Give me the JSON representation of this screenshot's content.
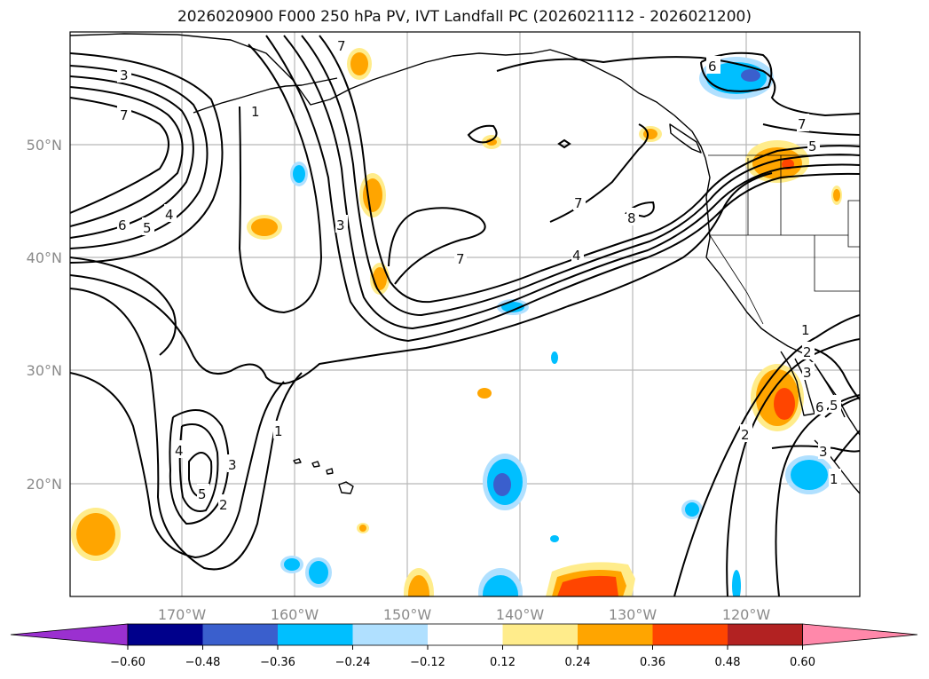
{
  "title": "2026020900 F000 250 hPa PV, IVT Landfall PC (2026021112 - 2026021200)",
  "map": {
    "lon_labels": [
      "170°W",
      "160°W",
      "150°W",
      "140°W",
      "130°W",
      "120°W"
    ],
    "lat_labels": [
      "50°N",
      "40°N",
      "30°N",
      "20°N"
    ],
    "contour_labels": [
      "3",
      "7",
      "1",
      "6",
      "6",
      "5",
      "4",
      "3",
      "7",
      "8",
      "7",
      "4",
      "5",
      "7",
      "1",
      "2",
      "3",
      "4",
      "5",
      "1",
      "2",
      "3",
      "1",
      "6",
      "5",
      "2",
      "3",
      "7"
    ],
    "fill_palette": {
      "neg_060": "#9b30d0",
      "neg_048": "#00008b",
      "neg_036": "#3a5fcd",
      "neg_024": "#00bfff",
      "neg_012": "#b0e0ff",
      "pos_012": "#ffec8b",
      "pos_024": "#ffa500",
      "pos_036": "#ff4500",
      "pos_048": "#b22222",
      "pos_060": "#ff88aa"
    }
  },
  "colorbar": {
    "colors": [
      "#9b30d0",
      "#00008b",
      "#3a5fcd",
      "#00bfff",
      "#b0e0ff",
      "#ffffff",
      "#ffec8b",
      "#ffa500",
      "#ff4500",
      "#b22222",
      "#ff88aa"
    ],
    "tick_labels": [
      "−0.60",
      "−0.48",
      "−0.36",
      "−0.24",
      "−0.12",
      "0.12",
      "0.24",
      "0.36",
      "0.48",
      "0.60"
    ]
  }
}
